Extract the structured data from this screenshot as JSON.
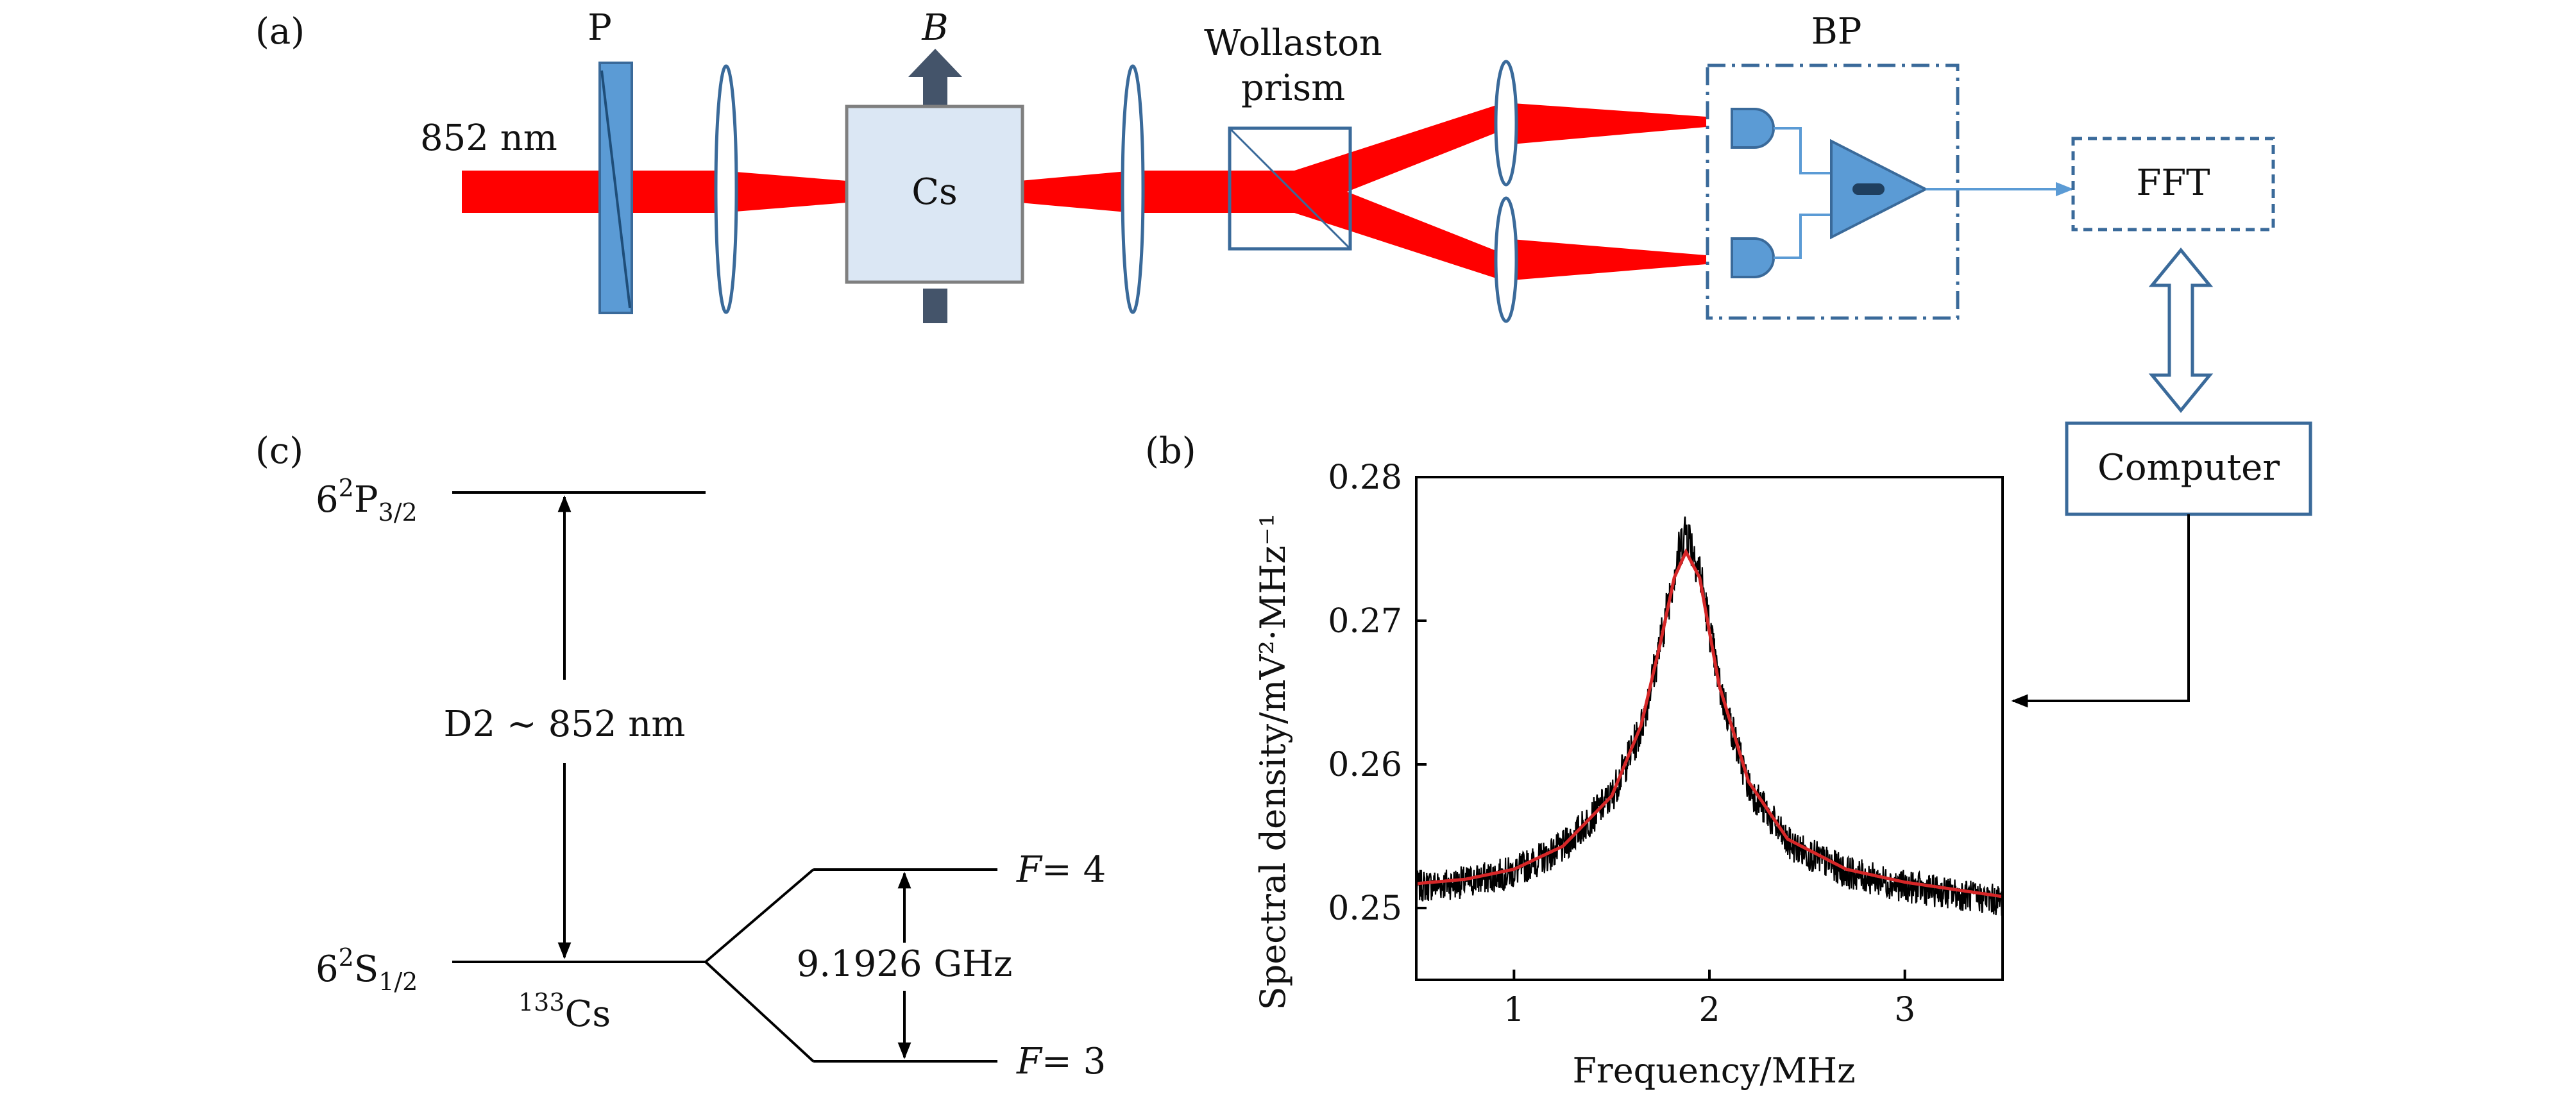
{
  "colors": {
    "beam": "#ff0000",
    "optic_blue": "#5b9bd5",
    "optic_edge": "#3a6a9a",
    "cell_fill": "#dbe7f4",
    "field_arrow": "#44546a",
    "signal_line": "#5b9bd5",
    "trace": "#000000",
    "fit": "#d62728"
  },
  "icons": {
    "polarizer": "polarizer-icon",
    "lens": "lens-icon",
    "vapor_cell": "cs-cell-icon",
    "prism": "wollaston-prism-icon",
    "photodiode": "photodiode-icon",
    "amplifier": "amplifier-icon",
    "double_arrow": "double-arrow-icon"
  },
  "panel_a": {
    "label": "(a)",
    "wavelength": "852 nm",
    "polarizer": "P",
    "field": "B",
    "cell": "Cs",
    "prism_line1": "Wollaston",
    "prism_line2": "prism",
    "detector": "BP",
    "fft": "FFT",
    "computer": "Computer"
  },
  "panel_b": {
    "label": "(b)"
  },
  "panel_c": {
    "label": "(c)",
    "upper_state": {
      "base": "6",
      "sup": "2",
      "term": "P",
      "sub": "3/2"
    },
    "lower_state": {
      "base": "6",
      "sup": "2",
      "term": "S",
      "sub": "1/2"
    },
    "transition": "D2 ∼ 852 nm",
    "isotope": {
      "sup": "133",
      "element": "Cs"
    },
    "splitting": "9.1926 GHz",
    "upper_level": {
      "var": "F",
      "value": "= 4"
    },
    "lower_level": {
      "var": "F",
      "value": "= 3"
    }
  },
  "chart_data": {
    "type": "line",
    "xlabel": "Frequency/MHz",
    "ylabel": "Spectral density/mV²·MHz⁻¹",
    "xlim": [
      0.5,
      3.5
    ],
    "ylim": [
      0.245,
      0.28
    ],
    "xticks": [
      "1",
      "2",
      "3"
    ],
    "yticks": [
      "0.25",
      "0.26",
      "0.27",
      "0.28"
    ],
    "grid": false,
    "legend": "none",
    "series": [
      {
        "style": "noisy measured trace",
        "x": [
          0.5,
          0.75,
          1.0,
          1.25,
          1.5,
          1.65,
          1.75,
          1.82,
          1.88,
          1.95,
          2.05,
          2.2,
          2.4,
          2.7,
          3.0,
          3.5
        ],
        "y": [
          0.2515,
          0.2518,
          0.2525,
          0.2542,
          0.2578,
          0.2625,
          0.2685,
          0.2735,
          0.2765,
          0.2735,
          0.2655,
          0.2585,
          0.2545,
          0.2525,
          0.2515,
          0.2505
        ]
      },
      {
        "style": "Lorentzian fit",
        "x": [
          0.5,
          0.75,
          1.0,
          1.25,
          1.5,
          1.65,
          1.75,
          1.82,
          1.88,
          1.95,
          2.05,
          2.2,
          2.4,
          2.7,
          3.0,
          3.5
        ],
        "y": [
          0.2517,
          0.252,
          0.2527,
          0.2543,
          0.2578,
          0.2627,
          0.2685,
          0.273,
          0.2748,
          0.273,
          0.2655,
          0.2588,
          0.2548,
          0.2527,
          0.2518,
          0.2508
        ]
      }
    ]
  }
}
